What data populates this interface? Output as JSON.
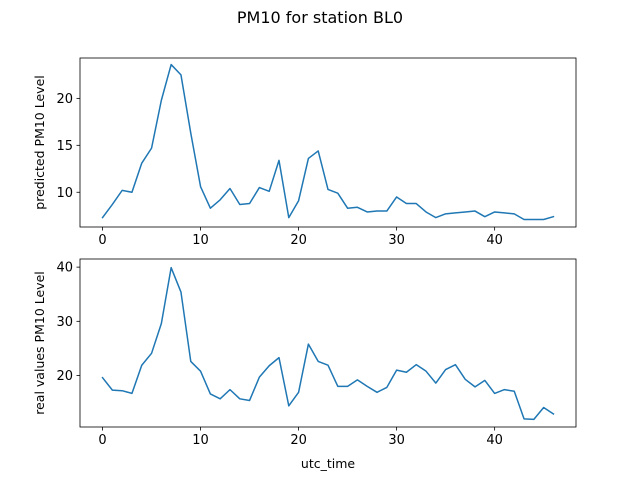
{
  "figure": {
    "title": "PM10 for station BL0"
  },
  "chart_data": [
    {
      "type": "line",
      "ylabel": "predicted PM10 Level",
      "xlabel": "",
      "xlim": [
        -2.3,
        48.3
      ],
      "ylim": [
        6.3,
        24.3
      ],
      "xticks": [
        0,
        10,
        20,
        30,
        40
      ],
      "yticks": [
        10,
        15,
        20
      ],
      "grid": false,
      "color": "#1f77b4",
      "series": [
        {
          "x": [
            0,
            1,
            2,
            3,
            4,
            5,
            6,
            7,
            8,
            9,
            10,
            11,
            12,
            13,
            14,
            15,
            16,
            17,
            18,
            19,
            20,
            21,
            22,
            23,
            24,
            25,
            26,
            27,
            28,
            29,
            30,
            31,
            32,
            33,
            34,
            35,
            36,
            37,
            38,
            39,
            40,
            41,
            42,
            43,
            44,
            45,
            46
          ],
          "values": [
            7.3,
            8.7,
            10.2,
            10.0,
            13.1,
            14.7,
            19.8,
            23.6,
            22.5,
            16.3,
            10.6,
            8.3,
            9.2,
            10.4,
            8.7,
            8.8,
            10.5,
            10.1,
            13.4,
            7.3,
            9.1,
            13.6,
            14.4,
            10.3,
            9.9,
            8.3,
            8.4,
            7.9,
            8.0,
            8.0,
            9.5,
            8.8,
            8.8,
            7.9,
            7.3,
            7.7,
            7.8,
            7.9,
            8.0,
            7.4,
            7.9,
            7.8,
            7.7,
            7.1,
            7.1,
            7.1,
            7.4
          ]
        }
      ]
    },
    {
      "type": "line",
      "ylabel": "real values PM10 Level",
      "xlabel": "utc_time",
      "xlim": [
        -2.3,
        48.3
      ],
      "ylim": [
        10.5,
        41.5
      ],
      "xticks": [
        0,
        10,
        20,
        30,
        40
      ],
      "yticks": [
        20,
        30,
        40
      ],
      "grid": false,
      "color": "#1f77b4",
      "series": [
        {
          "x": [
            0,
            1,
            2,
            3,
            4,
            5,
            6,
            7,
            8,
            9,
            10,
            11,
            12,
            13,
            14,
            15,
            16,
            17,
            18,
            19,
            20,
            21,
            22,
            23,
            24,
            25,
            26,
            27,
            28,
            29,
            30,
            31,
            32,
            33,
            34,
            35,
            36,
            37,
            38,
            39,
            40,
            41,
            42,
            43,
            44,
            45,
            46
          ],
          "values": [
            19.6,
            17.3,
            17.2,
            16.7,
            21.9,
            24.1,
            29.6,
            39.9,
            35.4,
            22.6,
            20.8,
            16.6,
            15.7,
            17.4,
            15.7,
            15.4,
            19.7,
            21.8,
            23.3,
            14.4,
            16.9,
            25.8,
            22.6,
            21.9,
            18.0,
            18.0,
            19.2,
            18.0,
            16.9,
            17.8,
            21.0,
            20.6,
            22.0,
            20.8,
            18.6,
            21.1,
            22.0,
            19.3,
            17.9,
            19.1,
            16.7,
            17.4,
            17.1,
            12.0,
            11.9,
            14.1,
            12.9
          ]
        }
      ]
    }
  ]
}
